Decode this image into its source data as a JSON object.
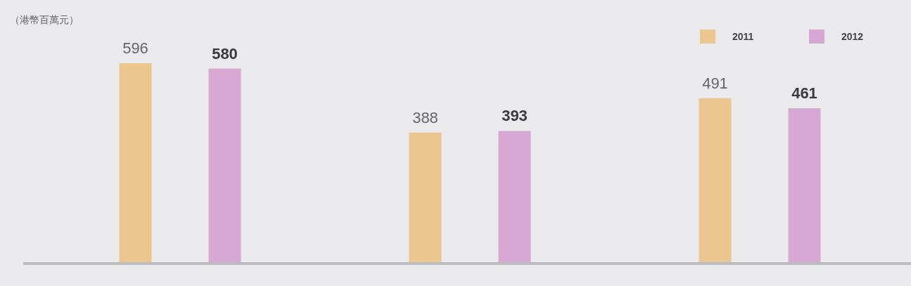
{
  "chart_data": {
    "type": "bar",
    "ylabel": "（港幣百萬元）",
    "categories": [
      null,
      null,
      null
    ],
    "series": [
      {
        "name": "2011",
        "color": "#ecc68f",
        "values": [
          596,
          388,
          491
        ]
      },
      {
        "name": "2012",
        "color": "#d7a8d3",
        "values": [
          580,
          393,
          461
        ]
      }
    ],
    "data_labels": true,
    "legend": "top right"
  }
}
